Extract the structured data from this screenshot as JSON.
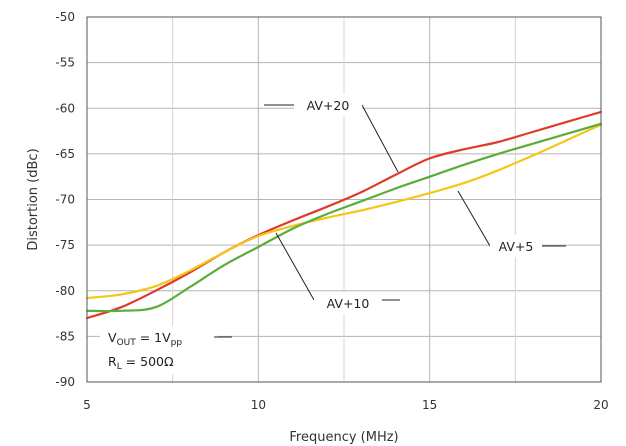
{
  "chart_data": {
    "type": "line",
    "xlabel": "Frequency (MHz)",
    "ylabel": "Distortion (dBc)",
    "xlim": [
      5,
      20
    ],
    "ylim": [
      -90,
      -50
    ],
    "xticks": [
      5,
      10,
      15,
      20
    ],
    "yticks": [
      -50,
      -55,
      -60,
      -65,
      -70,
      -75,
      -80,
      -85,
      -90
    ],
    "grid": true,
    "x_minor_gridlines": [
      7.5,
      12.5,
      17.5
    ],
    "series": [
      {
        "name": "AV+20",
        "color": "#e03a2a",
        "x": [
          5,
          6,
          7,
          8,
          9,
          10,
          11,
          12,
          13,
          14,
          15,
          16,
          17,
          18,
          19,
          20
        ],
        "y": [
          -83.0,
          -81.8,
          -80.0,
          -78.0,
          -75.8,
          -73.9,
          -72.3,
          -70.8,
          -69.2,
          -67.3,
          -65.5,
          -64.5,
          -63.7,
          -62.6,
          -61.5,
          -60.4
        ]
      },
      {
        "name": "AV+5",
        "color": "#f5c61a",
        "x": [
          5,
          6,
          7,
          8,
          9,
          10,
          11,
          12,
          13,
          14,
          15,
          16,
          17,
          18,
          19,
          20
        ],
        "y": [
          -80.8,
          -80.4,
          -79.5,
          -77.8,
          -75.8,
          -74.0,
          -72.9,
          -72.0,
          -71.2,
          -70.3,
          -69.3,
          -68.2,
          -66.8,
          -65.2,
          -63.5,
          -61.8
        ]
      },
      {
        "name": "AV+10",
        "color": "#5aad37",
        "x": [
          5,
          6,
          7,
          8,
          9,
          10,
          11,
          12,
          13,
          14,
          15,
          16,
          17,
          18,
          19,
          20
        ],
        "y": [
          -82.2,
          -82.2,
          -81.8,
          -79.6,
          -77.2,
          -75.2,
          -73.2,
          -71.6,
          -70.2,
          -68.8,
          -67.5,
          -66.2,
          -65.0,
          -63.9,
          -62.8,
          -61.7
        ]
      }
    ],
    "annotations": [
      {
        "text": "AV+20",
        "series": "AV+20"
      },
      {
        "text": "AV+5",
        "series": "AV+5"
      },
      {
        "text": "AV+10",
        "series": "AV+10"
      }
    ],
    "conditions": {
      "vout_main": "V",
      "vout_sub": "OUT",
      "vout_eq": " = 1V",
      "vout_unit_sub": "pp",
      "rl_main": "R",
      "rl_sub": "L",
      "rl_eq": " = 500Ω"
    }
  }
}
